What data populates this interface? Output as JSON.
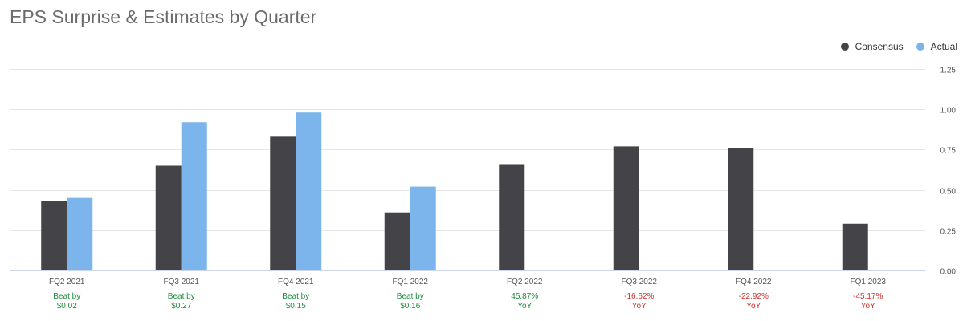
{
  "chart_data": {
    "type": "bar",
    "title": "EPS Surprise & Estimates by Quarter",
    "categories": [
      "FQ2 2021",
      "FQ3 2021",
      "FQ4 2021",
      "FQ1 2022",
      "FQ2 2022",
      "FQ3 2022",
      "FQ4 2022",
      "FQ1 2023"
    ],
    "series": [
      {
        "name": "Consensus",
        "color": "#434348",
        "values": [
          0.43,
          0.65,
          0.83,
          0.36,
          0.66,
          0.77,
          0.76,
          0.29
        ]
      },
      {
        "name": "Actual",
        "color": "#7cb5ec",
        "values": [
          0.45,
          0.92,
          0.98,
          0.52,
          null,
          null,
          null,
          null
        ]
      }
    ],
    "annotations": [
      {
        "line1": "Beat by",
        "line2": "$0.02",
        "color": "#1a8a3c"
      },
      {
        "line1": "Beat by",
        "line2": "$0.27",
        "color": "#1a8a3c"
      },
      {
        "line1": "Beat by",
        "line2": "$0.15",
        "color": "#1a8a3c"
      },
      {
        "line1": "Beat by",
        "line2": "$0.16",
        "color": "#1a8a3c"
      },
      {
        "line1": "45.87%",
        "line2": "YoY",
        "color": "#1a8a3c"
      },
      {
        "line1": "-16.62%",
        "line2": "YoY",
        "color": "#d0312d"
      },
      {
        "line1": "-22.92%",
        "line2": "YoY",
        "color": "#d0312d"
      },
      {
        "line1": "-45.17%",
        "line2": "YoY",
        "color": "#d0312d"
      }
    ],
    "ylim": [
      0,
      1.25
    ],
    "yticks": [
      "0.00",
      "0.25",
      "0.50",
      "0.75",
      "1.00",
      "1.25"
    ],
    "ytick_values": [
      0,
      0.25,
      0.5,
      0.75,
      1.0,
      1.25
    ],
    "y_axis_side": "right",
    "grid": true,
    "legend_position": "top-right",
    "colors": {
      "grid": "#e6e6e6",
      "axis": "#ccd6eb",
      "tick_text": "#555555"
    }
  }
}
